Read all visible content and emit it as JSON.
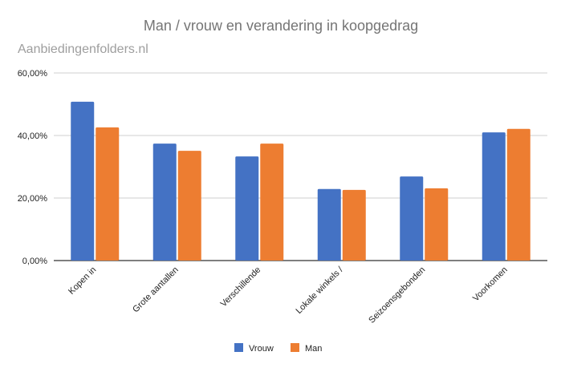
{
  "chart_data": {
    "type": "bar",
    "title": "Man / vrouw en verandering in koopgedrag",
    "watermark": "Aanbiedingenfolders.nl",
    "categories": [
      "Kopen in",
      "Grote aantallen",
      "Verschillende",
      "Lokale winkels /",
      "Seizoensgebonden",
      "Voorkomen"
    ],
    "series": [
      {
        "name": "Vrouw",
        "color": "#4472C4",
        "values": [
          50.8,
          37.4,
          33.3,
          22.9,
          26.9,
          41.0
        ]
      },
      {
        "name": "Man",
        "color": "#ED7D31",
        "values": [
          42.6,
          35.1,
          37.4,
          22.6,
          23.1,
          42.1
        ]
      }
    ],
    "ylim": [
      0,
      60
    ],
    "yticks": [
      "0,00%",
      "20,00%",
      "40,00%",
      "60,00%"
    ],
    "ytick_values": [
      0,
      20,
      40,
      60
    ],
    "xlabel": "",
    "ylabel": "",
    "grid": true,
    "legend": "bottom"
  }
}
